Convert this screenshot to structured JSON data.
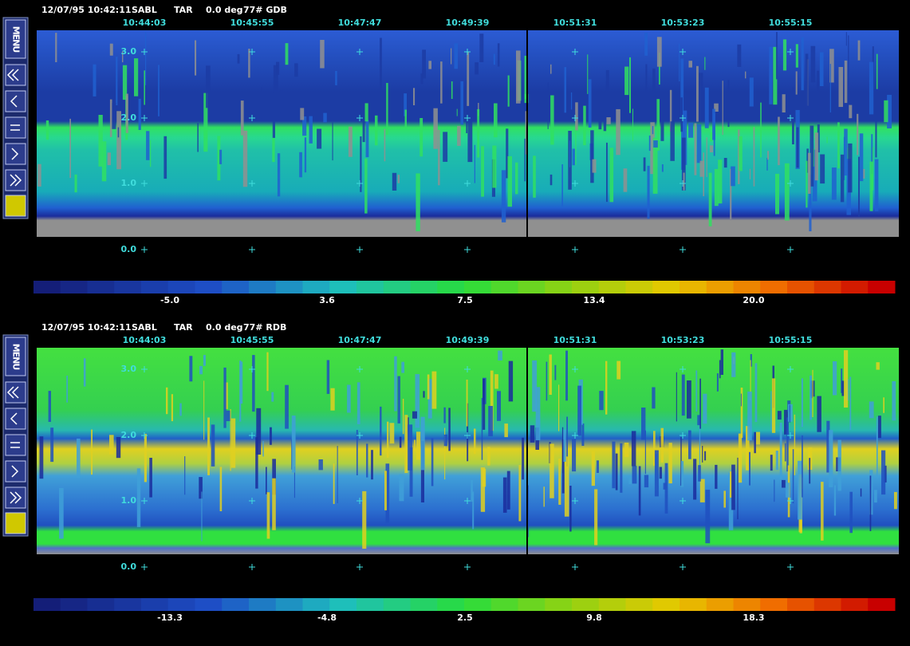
{
  "panels": [
    {
      "header": {
        "timestamp": "12/07/95 10:42:11",
        "site": "SABL",
        "mode": "TAR",
        "angle": "0.0 deg",
        "channel": "77# GDB"
      },
      "menu": {
        "label": "MENU"
      },
      "time_ticks": [
        "10:44:03",
        "10:45:55",
        "10:47:47",
        "10:49:39",
        "10:51:31",
        "10:53:23",
        "10:55:15"
      ],
      "height_ticks": [
        "3.0",
        "2.0",
        "1.0",
        "0.0"
      ],
      "colorbar_labels": [
        "-5.0",
        "3.6",
        "7.5",
        "13.4",
        "20.0"
      ]
    },
    {
      "header": {
        "timestamp": "12/07/95 10:42:11",
        "site": "SABL",
        "mode": "TAR",
        "angle": "0.0 deg",
        "channel": "77# RDB"
      },
      "menu": {
        "label": "MENU"
      },
      "time_ticks": [
        "10:44:03",
        "10:45:55",
        "10:47:47",
        "10:49:39",
        "10:51:31",
        "10:53:23",
        "10:55:15"
      ],
      "height_ticks": [
        "3.0",
        "2.0",
        "1.0",
        "0.0"
      ],
      "colorbar_labels": [
        "-13.3",
        "-4.8",
        "2.5",
        "9.8",
        "18.3"
      ]
    }
  ]
}
